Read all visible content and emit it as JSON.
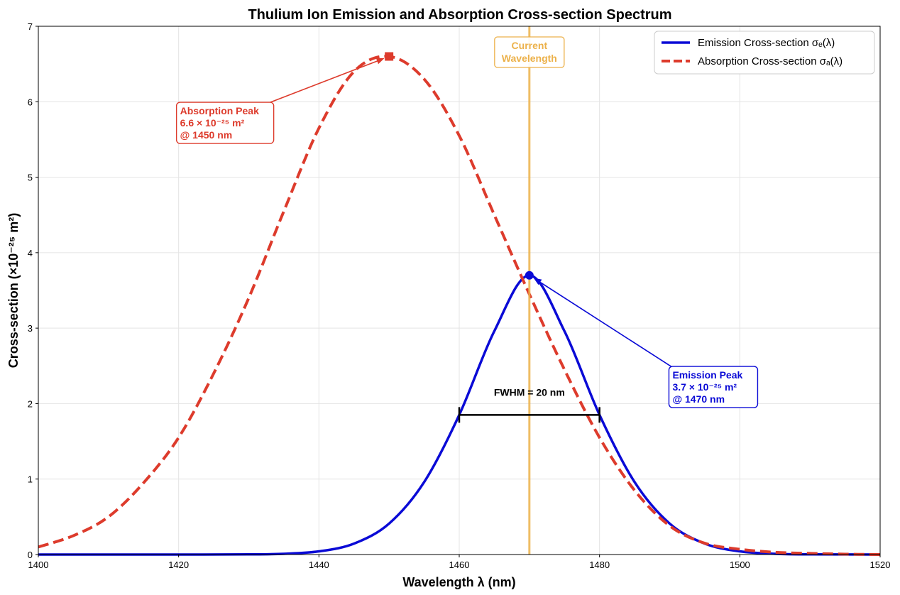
{
  "chart_data": {
    "type": "line",
    "title": "Thulium Ion Emission and Absorption Cross-section Spectrum",
    "xlabel": "Wavelength λ (nm)",
    "ylabel": "Cross-section (×10⁻²⁵ m²)",
    "xlim": [
      1400,
      1520
    ],
    "ylim": [
      0,
      7
    ],
    "x_ticks": [
      1400,
      1420,
      1440,
      1460,
      1480,
      1500,
      1520
    ],
    "y_ticks": [
      0,
      1,
      2,
      3,
      4,
      5,
      6,
      7
    ],
    "grid": true,
    "legend_position": "top-right",
    "colors": {
      "emission": "#0a0ad6",
      "absorption": "#dd3b2c",
      "current_line": "#ecb14a",
      "fwhm_bar": "#000000"
    },
    "series": [
      {
        "name": "Emission Cross-section σₑ(λ)",
        "style": "solid",
        "color": "#0a0ad6",
        "x": [
          1400,
          1410,
          1420,
          1430,
          1435,
          1440,
          1445,
          1450,
          1455,
          1460,
          1465,
          1470,
          1475,
          1480,
          1485,
          1490,
          1495,
          1500,
          1505,
          1510,
          1520
        ],
        "y": [
          0.0,
          0.0,
          0.0,
          0.002,
          0.01,
          0.042,
          0.145,
          0.41,
          0.96,
          1.85,
          2.96,
          3.7,
          2.96,
          1.85,
          0.96,
          0.41,
          0.145,
          0.042,
          0.01,
          0.002,
          0.0
        ]
      },
      {
        "name": "Absorption Cross-section σₐ(λ)",
        "style": "dashed",
        "color": "#dd3b2c",
        "x": [
          1400,
          1405,
          1410,
          1415,
          1420,
          1425,
          1430,
          1435,
          1440,
          1445,
          1450,
          1455,
          1460,
          1465,
          1470,
          1475,
          1480,
          1485,
          1490,
          1495,
          1500,
          1505,
          1510,
          1515,
          1520
        ],
        "y": [
          0.1,
          0.25,
          0.5,
          0.95,
          1.55,
          2.4,
          3.4,
          4.55,
          5.65,
          6.4,
          6.6,
          6.3,
          5.55,
          4.5,
          3.45,
          2.45,
          1.55,
          0.85,
          0.38,
          0.15,
          0.07,
          0.03,
          0.015,
          0.005,
          0.0
        ]
      }
    ],
    "markers": [
      {
        "series": "absorption",
        "shape": "square",
        "x": 1450,
        "y": 6.6
      },
      {
        "series": "emission",
        "shape": "circle",
        "x": 1470,
        "y": 3.7
      }
    ],
    "vertical_line": {
      "x": 1470,
      "label_lines": [
        "Current",
        "Wavelength"
      ]
    },
    "fwhm": {
      "x_start": 1460,
      "x_end": 1480,
      "y": 1.85,
      "label": "FWHM = 20 nm",
      "label_y": 2.15
    },
    "annotations": [
      {
        "target": "absorption",
        "lines": [
          "Absorption Peak",
          "6.6 × 10⁻²⁵ m²",
          "@ 1450 nm"
        ],
        "point": [
          1450,
          6.6
        ],
        "text_anchor": [
          1420.2,
          5.72
        ]
      },
      {
        "target": "emission",
        "lines": [
          "Emission Peak",
          "3.7 × 10⁻²⁵ m²",
          "@ 1470 nm"
        ],
        "point": [
          1470,
          3.7
        ],
        "text_anchor": [
          1490.4,
          2.22
        ]
      }
    ]
  }
}
